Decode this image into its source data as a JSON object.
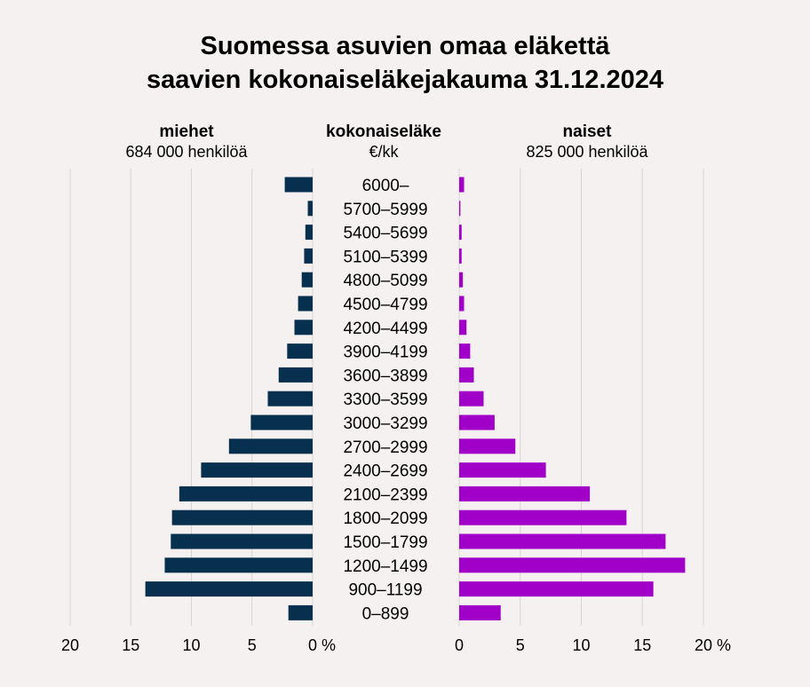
{
  "chart_data": {
    "type": "bar",
    "orientation": "horizontal-population-pyramid",
    "title_lines": [
      "Suomessa asuvien omaa eläkettä",
      "saavien kokonaiseläkejakauma 31.12.2024"
    ],
    "left_header": {
      "title": "miehet",
      "subtitle": "684 000 henkilöä"
    },
    "center_header": {
      "title": "kokonaiseläke",
      "subtitle": "€/kk"
    },
    "right_header": {
      "title": "naiset",
      "subtitle": "825 000 henkilöä"
    },
    "categories": [
      "6000–",
      "5700–5999",
      "5400–5699",
      "5100–5399",
      "4800–5099",
      "4500–4799",
      "4200–4499",
      "3900–4199",
      "3600–3899",
      "3300–3599",
      "3000–3299",
      "2700–2999",
      "2400–2699",
      "2100–2399",
      "1800–2099",
      "1500–1799",
      "1200–1499",
      "900–1199",
      "0–899"
    ],
    "series": [
      {
        "name": "miehet",
        "color": "#07304f",
        "values": [
          2.3,
          0.4,
          0.6,
          0.7,
          0.9,
          1.2,
          1.5,
          2.1,
          2.8,
          3.7,
          5.1,
          6.9,
          9.2,
          11.0,
          11.6,
          11.7,
          12.2,
          13.8,
          2.0
        ]
      },
      {
        "name": "naiset",
        "color": "#a100c8",
        "values": [
          0.4,
          0.1,
          0.2,
          0.2,
          0.3,
          0.4,
          0.6,
          0.9,
          1.2,
          2.0,
          2.9,
          4.6,
          7.1,
          10.7,
          13.7,
          16.9,
          18.5,
          15.9,
          3.4
        ]
      }
    ],
    "xlim": [
      0,
      20
    ],
    "left_ticks": [
      "20",
      "15",
      "10",
      "5",
      "0 %"
    ],
    "right_ticks": [
      "0",
      "5",
      "10",
      "15",
      "20 %"
    ],
    "unit": "%",
    "grid": true
  }
}
